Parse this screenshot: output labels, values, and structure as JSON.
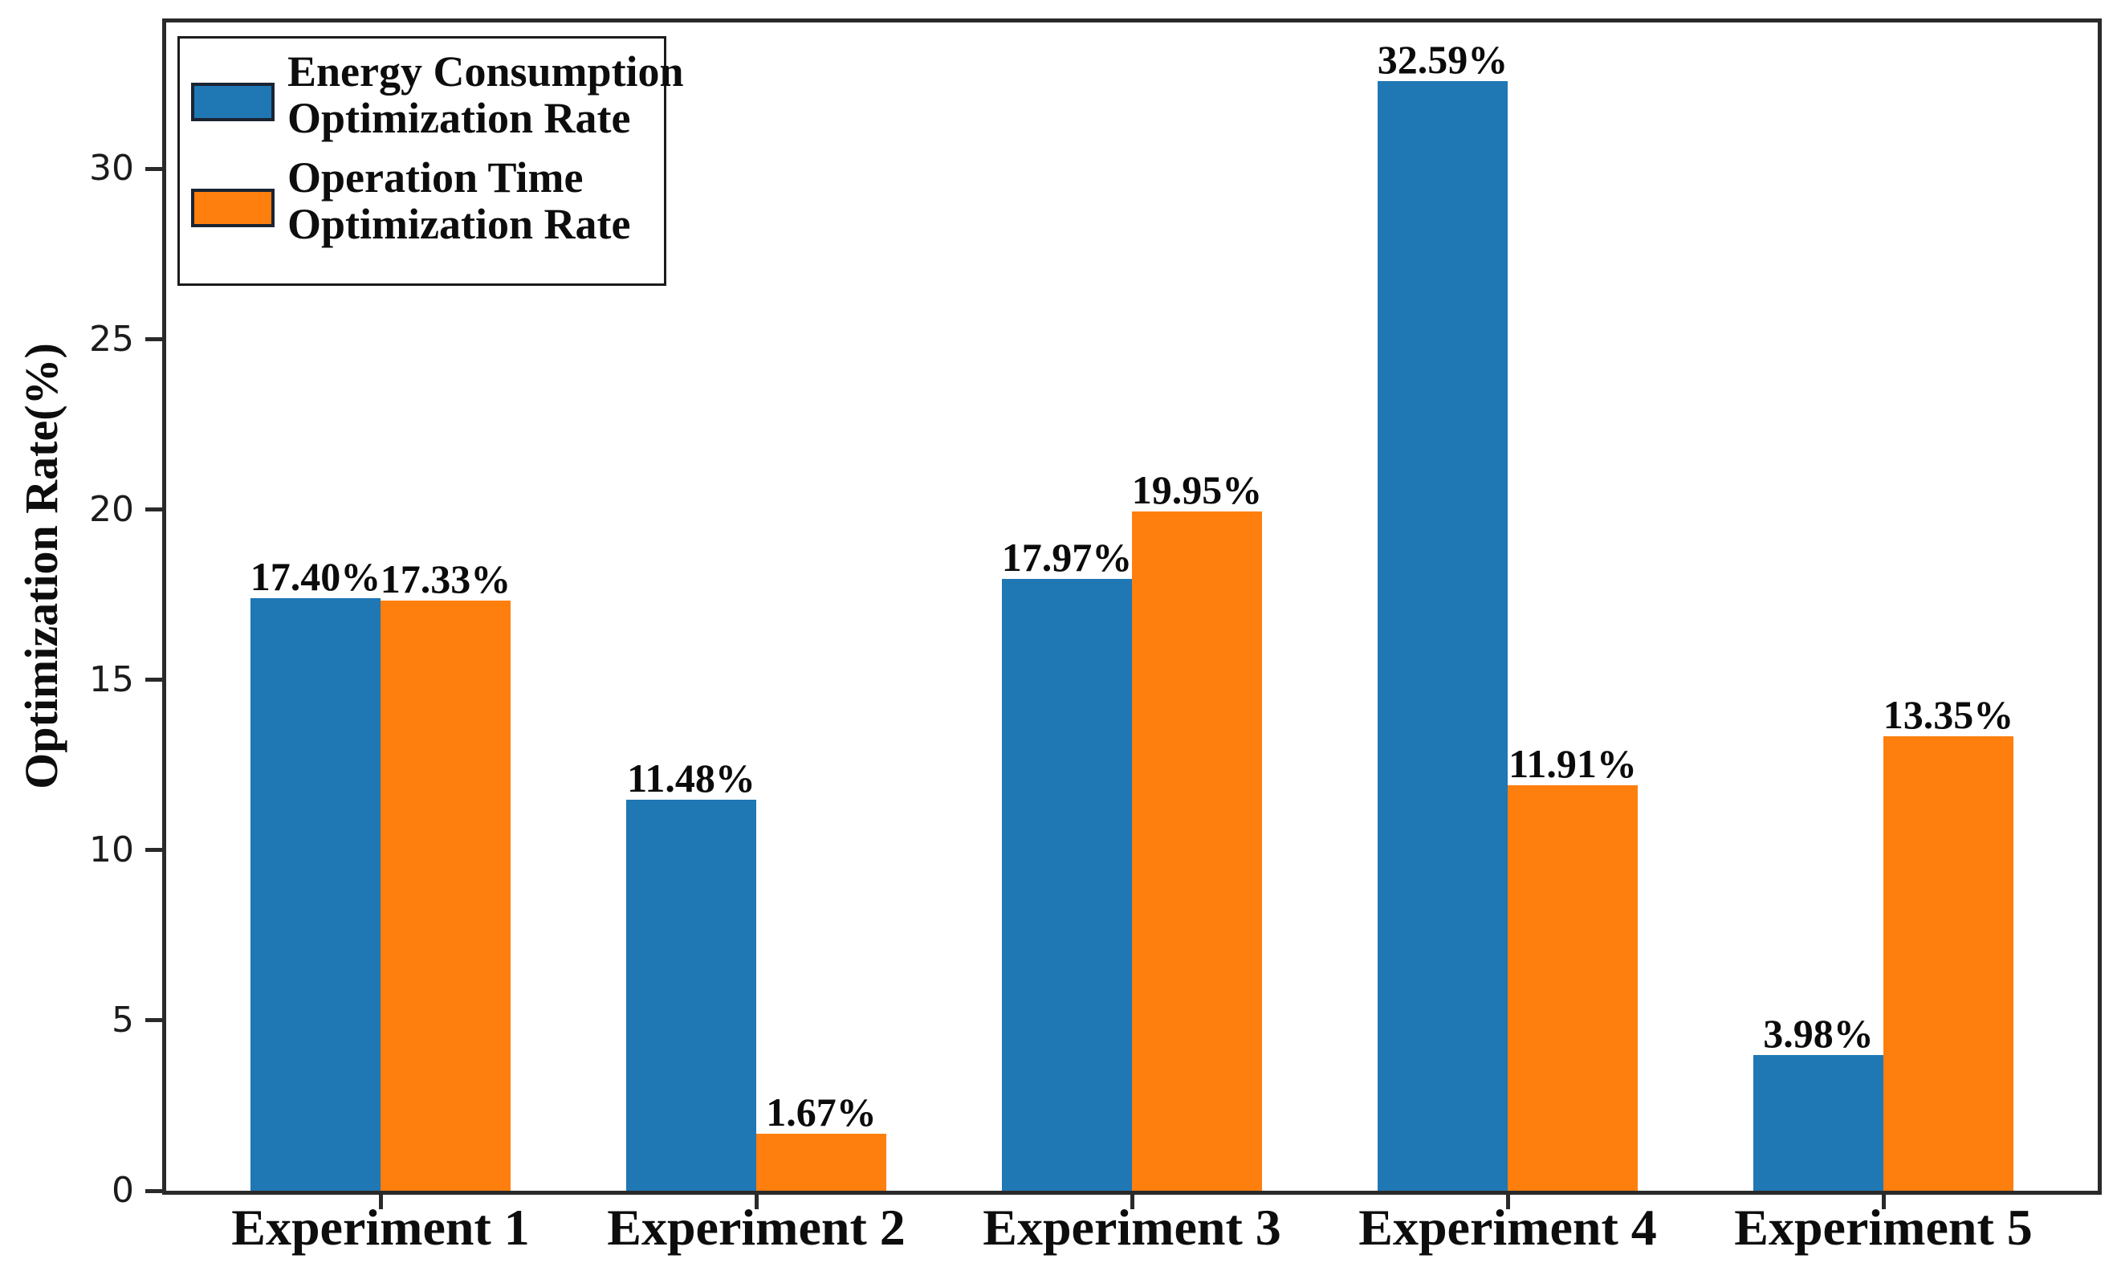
{
  "chart_data": {
    "type": "bar",
    "title": "",
    "xlabel": "",
    "ylabel": "Optimization Rate(%)",
    "categories": [
      "Experiment 1",
      "Experiment 2",
      "Experiment 3",
      "Experiment 4",
      "Experiment 5"
    ],
    "series": [
      {
        "name": "Energy Consumption Optimization Rate",
        "name_lines": [
          "Energy Consumption",
          "Optimization Rate"
        ],
        "color": "#1f77b4",
        "values": [
          17.4,
          11.48,
          17.97,
          32.59,
          3.98
        ],
        "bar_labels": [
          "17.40%",
          "11.48%",
          "17.97%",
          "32.59%",
          "3.98%"
        ]
      },
      {
        "name": "Operation Time Optimization Rate",
        "name_lines": [
          "Operation Time",
          "Optimization Rate"
        ],
        "color": "#ff7f0e",
        "values": [
          17.33,
          1.67,
          19.95,
          11.91,
          13.35
        ],
        "bar_labels": [
          "17.33%",
          "1.67%",
          "19.95%",
          "11.91%",
          "13.35%"
        ]
      }
    ],
    "yticks": [
      0,
      5,
      10,
      15,
      20,
      25,
      30
    ],
    "ylim": [
      0,
      34.3
    ],
    "grid": false,
    "legend_position": "upper-left",
    "axis_color": "#2a2a2a",
    "text_color": "#0d0d0d",
    "swatch_edge_color": "#1a2433",
    "background_color": "#ffffff"
  }
}
